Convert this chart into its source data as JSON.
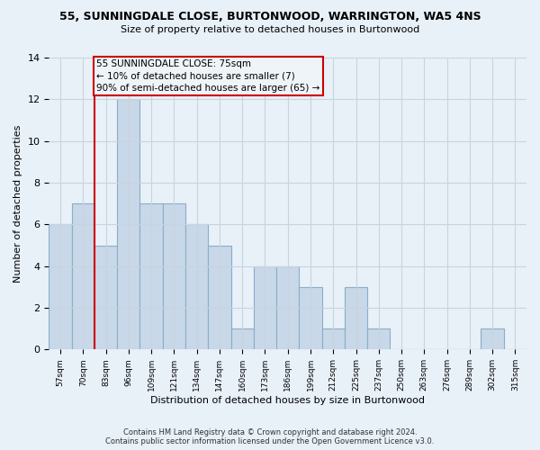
{
  "title": "55, SUNNINGDALE CLOSE, BURTONWOOD, WARRINGTON, WA5 4NS",
  "subtitle": "Size of property relative to detached houses in Burtonwood",
  "bar_labels": [
    "57sqm",
    "70sqm",
    "83sqm",
    "96sqm",
    "109sqm",
    "121sqm",
    "134sqm",
    "147sqm",
    "160sqm",
    "173sqm",
    "186sqm",
    "199sqm",
    "212sqm",
    "225sqm",
    "237sqm",
    "250sqm",
    "263sqm",
    "276sqm",
    "289sqm",
    "302sqm",
    "315sqm"
  ],
  "bar_values": [
    6,
    7,
    5,
    12,
    7,
    7,
    6,
    5,
    1,
    4,
    4,
    3,
    1,
    3,
    1,
    0,
    0,
    0,
    0,
    1,
    0
  ],
  "bar_color": "#c8d8e8",
  "bar_edge_color": "#8aaec8",
  "vline_x": 1.5,
  "vline_color": "#cc0000",
  "annotation_text": "55 SUNNINGDALE CLOSE: 75sqm\n← 10% of detached houses are smaller (7)\n90% of semi-detached houses are larger (65) →",
  "annotation_box_edge_color": "#cc0000",
  "annotation_box_bg": "#eef4f8",
  "xlabel": "Distribution of detached houses by size in Burtonwood",
  "ylabel": "Number of detached properties",
  "ylim": [
    0,
    14
  ],
  "yticks": [
    0,
    2,
    4,
    6,
    8,
    10,
    12,
    14
  ],
  "grid_color": "#c8d4de",
  "background_color": "#e8f0f8",
  "footer_line1": "Contains HM Land Registry data © Crown copyright and database right 2024.",
  "footer_line2": "Contains public sector information licensed under the Open Government Licence v3.0."
}
